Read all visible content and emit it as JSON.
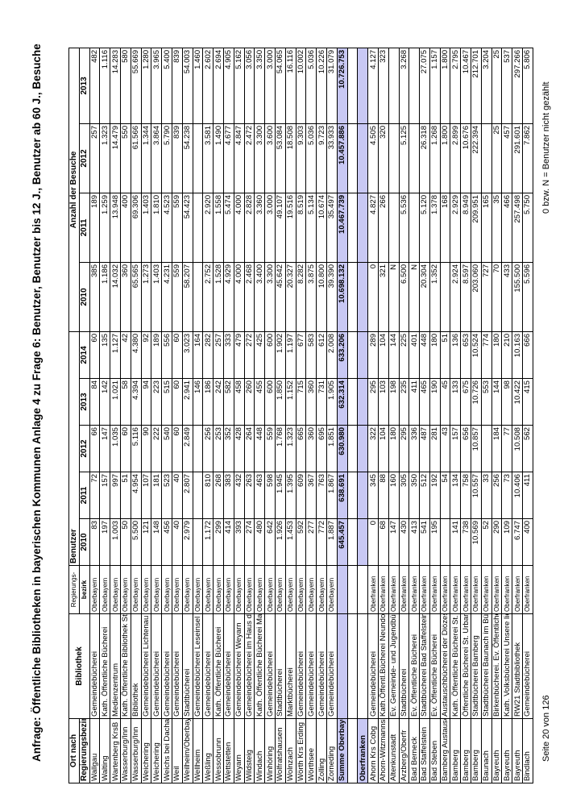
{
  "title": "Anfrage: Öffentliche Bibliotheken in bayerischen Kommunen Anlage 4 zu Frage 6: Benutzer, Benutzer bis 12 J., Benutzer ab 60 J., Besuche",
  "header": {
    "ort_line1": "Ort nach",
    "ort_line2": "Regierungsbezirk",
    "bibliothek": "Bibliothek",
    "bez_line1": "Regierungs-",
    "bez_line2": "bezirk",
    "benutzer": "Benutzer",
    "besuche": "Anzahl der Besuche",
    "benutzer_years": [
      "2010",
      "2011",
      "2012",
      "2013",
      "2014"
    ],
    "besuche_years": [
      "2010",
      "2011",
      "2012",
      "2013"
    ]
  },
  "rows": [
    [
      "Wallgau",
      "Gemeindebücherei",
      "Oberbayern",
      "83",
      "72",
      "66",
      "84",
      "60",
      "385",
      "189",
      "257",
      "482"
    ],
    [
      "Walting",
      "Kath. Öffentliche Bücherei",
      "Oberbayern",
      "197",
      "157",
      "147",
      "142",
      "135",
      "1.186",
      "1.259",
      "1.323",
      "1.116"
    ],
    [
      "Wartenberg KrsB",
      "Medienzentrum",
      "Oberbayern",
      "1.003",
      "997",
      "1.035",
      "1.021",
      "1.127",
      "14.032",
      "13.948",
      "14.479",
      "14.283"
    ],
    [
      "Wasserburg/Inn",
      "Kath. Öffentliche Bibliothek St. Ko",
      "Oberbayern",
      "50",
      "51",
      "60",
      "58",
      "42",
      "360",
      "400",
      "550",
      "580"
    ],
    [
      "Wasserburg/Inn",
      "Bibliothek",
      "Oberbayern",
      "5.500",
      "4.954",
      "5.116",
      "4.394",
      "4.380",
      "65.565",
      "69.306",
      "61.566",
      "55.669"
    ],
    [
      "Weichering",
      "Gemeindebücherei Lichtenau",
      "Oberbayern",
      "121",
      "107",
      "90",
      "94",
      "92",
      "1.273",
      "1.403",
      "1.344",
      "1.280"
    ],
    [
      "Weichering",
      "Gemeindebücherei",
      "Oberbayern",
      "148",
      "181",
      "222",
      "223",
      "189",
      "1.403",
      "1.810",
      "3.864",
      "3.965"
    ],
    [
      "Weichs bei Dachau",
      "Gemeindebücherei",
      "Oberbayern",
      "456",
      "523",
      "540",
      "515",
      "556",
      "4.231",
      "4.523",
      "5.790",
      "5.400"
    ],
    [
      "Weil",
      "Gemeindebücherei",
      "Oberbayern",
      "40",
      "40",
      "60",
      "60",
      "60",
      "559",
      "559",
      "839",
      "839"
    ],
    [
      "Weilheim/Oberbay",
      "Stadtbücherei",
      "Oberbayern",
      "2.979",
      "2.807",
      "2.849",
      "2.941",
      "3.023",
      "58.207",
      "54.423",
      "54.238",
      "54.003"
    ],
    [
      "Wellheim",
      "Gemeindebücherei Leseinsel",
      "Oberbayern",
      "",
      "",
      "",
      "146",
      "164",
      "",
      "",
      "",
      "1.460"
    ],
    [
      "Weßling",
      "Gemeindebücherei",
      "Oberbayern",
      "1.172",
      "810",
      "256",
      "186",
      "282",
      "2.752",
      "2.920",
      "3.581",
      "2.602"
    ],
    [
      "Wessobrunn",
      "Kath. Öffentliche Bücherei",
      "Oberbayern",
      "299",
      "268",
      "253",
      "242",
      "257",
      "1.528",
      "1.558",
      "1.490",
      "2.694"
    ],
    [
      "Wettstetten",
      "Gemeindebücherei",
      "Oberbayern",
      "414",
      "383",
      "352",
      "582",
      "333",
      "4.929",
      "5.474",
      "4.677",
      "4.905"
    ],
    [
      "Weyarn",
      "Gemeindebücherei Weyarn",
      "Oberbayern",
      "393",
      "432",
      "428",
      "458",
      "479",
      "4.000",
      "4.000",
      "4.847",
      "5.162"
    ],
    [
      "Wildsteig",
      "Gemeindebücherei im Haus des G",
      "Oberbayern",
      "274",
      "263",
      "264",
      "260",
      "272",
      "2.468",
      "2.828",
      "2.472",
      "3.056"
    ],
    [
      "Windach",
      "Kath. Öffentliche Bücherei Maria a",
      "Oberbayern",
      "480",
      "463",
      "448",
      "455",
      "425",
      "3.400",
      "3.360",
      "3.300",
      "3.350"
    ],
    [
      "Winhöring",
      "Gemeindebücherei",
      "Oberbayern",
      "642",
      "598",
      "559",
      "600",
      "600",
      "3.300",
      "3.000",
      "3.600",
      "3.000"
    ],
    [
      "Wolfratshausen",
      "Stadtbücherei",
      "Oberbayern",
      "1.926",
      "1.945",
      "1.768",
      "1.850",
      "1.902",
      "45.642",
      "49.107",
      "53.084",
      "54.065"
    ],
    [
      "Wolnzach",
      "Marktbücherei",
      "Oberbayern",
      "1.453",
      "1.395",
      "1.323",
      "1.152",
      "1.197",
      "20.327",
      "19.516",
      "18.508",
      "16.116"
    ],
    [
      "Wörth Krs Erding",
      "Gemeindebücherei",
      "Oberbayern",
      "592",
      "609",
      "665",
      "715",
      "677",
      "8.282",
      "8.519",
      "9.303",
      "10.002"
    ],
    [
      "Wörthsee",
      "Gemeindebücherei",
      "Oberbayern",
      "277",
      "367",
      "360",
      "360",
      "583",
      "3.875",
      "5.134",
      "5.036",
      "5.036"
    ],
    [
      "Zolling",
      "Gemeindebücherei",
      "Oberbayern",
      "772",
      "763",
      "695",
      "731",
      "612",
      "10.800",
      "10.674",
      "9.723",
      "10.226"
    ],
    [
      "Zorneding",
      "Gemeindebücherei",
      "Oberbayern",
      "1.887",
      "1.867",
      "1.851",
      "1.905",
      "2.008",
      "39.390",
      "35.497",
      "33.933",
      "31.079"
    ],
    {
      "type": "sum",
      "cells": [
        "Summe Oberbayern",
        "",
        "",
        "645.457",
        "638.691",
        "630.980",
        "632.314",
        "633.206",
        "10.698.132",
        "10.467.739",
        "10.457.886",
        "10.726.753"
      ]
    },
    {
      "type": "blank",
      "cells": [
        "",
        "",
        "",
        "",
        "",
        "",
        "",
        "",
        "",
        "",
        "",
        ""
      ]
    },
    {
      "type": "region",
      "cells": [
        "Oberfranken",
        "",
        "",
        "",
        "",
        "",
        "",
        "",
        "",
        "",
        "",
        ""
      ]
    },
    [
      "Ahorn Krs Cobg",
      "Gemeindebücherei",
      "Oberfranken",
      "0",
      "345",
      "322",
      "295",
      "289",
      "0",
      "4.827",
      "4.505",
      "4.127"
    ],
    [
      "Ahorn-Witzmannsberg",
      "Kath.Öffentl.Bücherei Neundorf St",
      "Oberfranken",
      "68",
      "88",
      "104",
      "103",
      "104",
      "321",
      "266",
      "320",
      "323"
    ],
    [
      "Altenkunstadt",
      "Ev. Gemeinde- und Jugendbücher",
      "Oberfranken",
      "147",
      "160",
      "180",
      "198",
      "144",
      "N",
      "",
      "",
      ""
    ],
    [
      "Arzberg/Oberfr",
      "Stadtbücherei",
      "Oberfranken",
      "430",
      "305",
      "295",
      "235",
      "225",
      "6.500",
      "5.536",
      "5.125",
      "3.268"
    ],
    [
      "Bad Berneck",
      "Ev. Öffentliche Bücherei",
      "Oberfranken",
      "413",
      "350",
      "336",
      "411",
      "401",
      "N",
      "",
      "",
      ""
    ],
    [
      "Bad Staffelstein",
      "Stadtbücherei Bad Staffelstein",
      "Oberfranken",
      "541",
      "512",
      "487",
      "465",
      "448",
      "20.304",
      "5.120",
      "26.318",
      "27.075"
    ],
    [
      "Bad Steben",
      "Ev. Öffentliche Bücherei",
      "Oberfranken",
      "195",
      "192",
      "281",
      "190",
      "180",
      "1.352",
      "1.378",
      "1.268",
      "1.157"
    ],
    [
      "Bamberg Austauschb.",
      "Austauschbücherei der Diözesans",
      "Oberfranken",
      "",
      "54",
      "43",
      "45",
      "51",
      "",
      "168",
      "1.800",
      "1.800"
    ],
    [
      "Bamberg",
      "Kath. Öffentliche Bücherei St. Ann",
      "Oberfranken",
      "141",
      "134",
      "157",
      "133",
      "136",
      "2.924",
      "2.929",
      "2.899",
      "2.795"
    ],
    [
      "Bamberg",
      "Öffentliche Bücherei St. Urban",
      "Oberfranken",
      "738",
      "758",
      "656",
      "675",
      "653",
      "8.597",
      "8.949",
      "10.676",
      "10.467"
    ],
    [
      "Bamberg",
      "Stadtbücherei Bamberg",
      "Oberfranken",
      "10.569",
      "10.557",
      "10.857",
      "10.726",
      "10.524",
      "203.060",
      "209.951",
      "222.394",
      "212.701"
    ],
    [
      "Baunach",
      "Stadtbücherei Baunach im Bürger",
      "Oberfranken",
      "52",
      "33",
      "",
      "553",
      "774",
      "727",
      "165",
      "",
      "3.204"
    ],
    [
      "Bayreuth",
      "Birkenbücherei. Ev. Öffentliche Ge",
      "Oberfranken",
      "290",
      "256",
      "184",
      "144",
      "180",
      "70",
      "35",
      "25",
      "25"
    ],
    [
      "Bayreuth",
      "Kath. Volksbücherei Unsere liebe",
      "Oberfranken",
      "109",
      "73",
      "77",
      "98",
      "210",
      "433",
      "466",
      "457",
      "537"
    ],
    [
      "Bayreuth",
      "RW21 Stadtbibliothek",
      "Oberfranken",
      "6.747",
      "10.406",
      "10.508",
      "10.422",
      "10.163",
      "155.500",
      "257.498",
      "291.601",
      "297.266"
    ],
    [
      "Bindlach",
      "Gemeindebücherei",
      "Oberfranken",
      "400",
      "411",
      "562",
      "415",
      "666",
      "5.596",
      "5.750",
      "7.862",
      "5.806"
    ]
  ],
  "footer": {
    "page": "Seite 20 von 126",
    "note": "0 bzw. N = Benutzer nicht gezählt"
  },
  "colors": {
    "highlight": "#c8c8f4"
  }
}
